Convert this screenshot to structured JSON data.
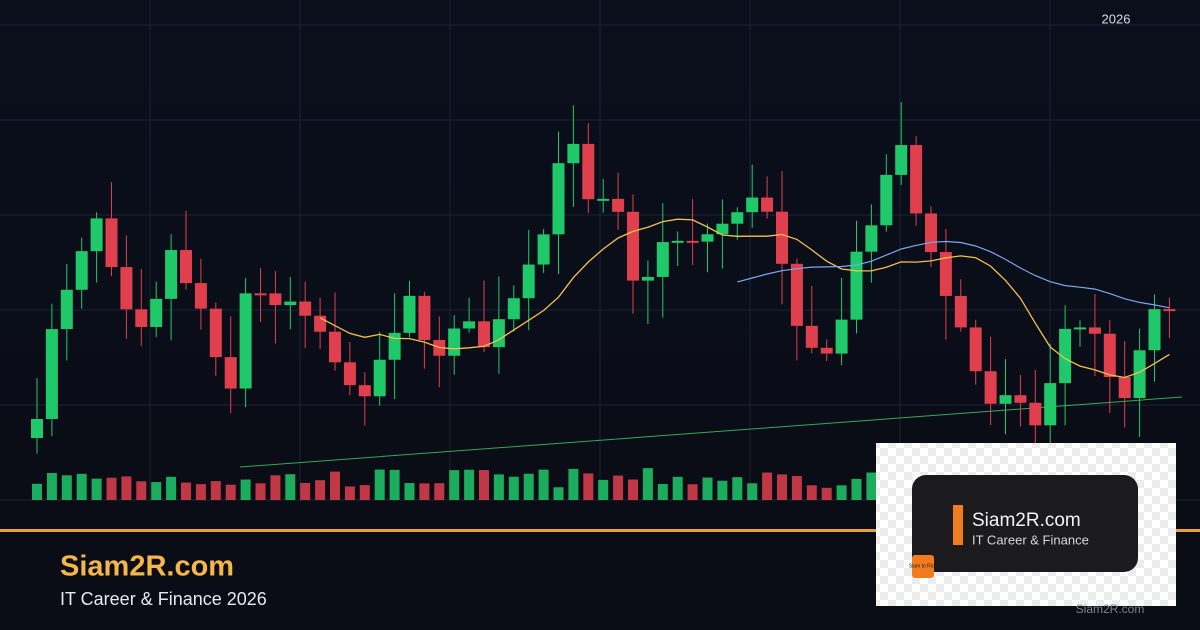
{
  "chart_year": "2026",
  "brand": {
    "title": "Siam2R.com",
    "subtitle": "IT Career & Finance 2026"
  },
  "logo_card": {
    "title": "Siam2R.com",
    "subtitle": "IT Career & Finance",
    "badge": "Siam to Rich"
  },
  "watermark": "Siam2R.com"
}
